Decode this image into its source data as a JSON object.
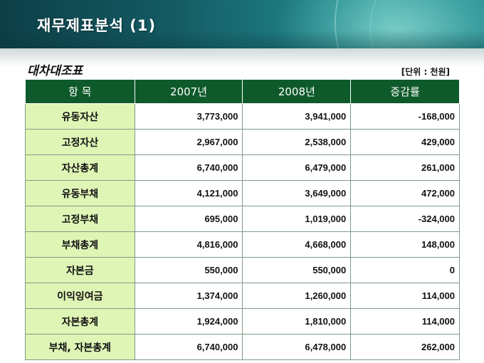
{
  "header": {
    "title": "재무제표분석 (1)"
  },
  "section": {
    "title": "대차대조표",
    "unit": "[단위 : 천원]"
  },
  "table": {
    "columns": [
      "항 목",
      "2007년",
      "2008년",
      "증감률"
    ],
    "rows": [
      [
        "유동자산",
        "3,773,000",
        "3,941,000",
        "-168,000"
      ],
      [
        "고정자산",
        "2,967,000",
        "2,538,000",
        "429,000"
      ],
      [
        "자산총계",
        "6,740,000",
        "6,479,000",
        "261,000"
      ],
      [
        "유동부채",
        "4,121,000",
        "3,649,000",
        "472,000"
      ],
      [
        "고정부채",
        "695,000",
        "1,019,000",
        "-324,000"
      ],
      [
        "부채총계",
        "4,816,000",
        "4,668,000",
        "148,000"
      ],
      [
        "자본금",
        "550,000",
        "550,000",
        "0"
      ],
      [
        "이익잉여금",
        "1,374,000",
        "1,260,000",
        "114,000"
      ],
      [
        "자본총계",
        "1,924,000",
        "1,810,000",
        "114,000"
      ],
      [
        "부채, 자본총계",
        "6,740,000",
        "6,478,000",
        "262,000"
      ]
    ]
  },
  "colors": {
    "header_bar": "#145a63",
    "table_header": "#0e5a2a",
    "label_cell": "#dff5b6"
  }
}
